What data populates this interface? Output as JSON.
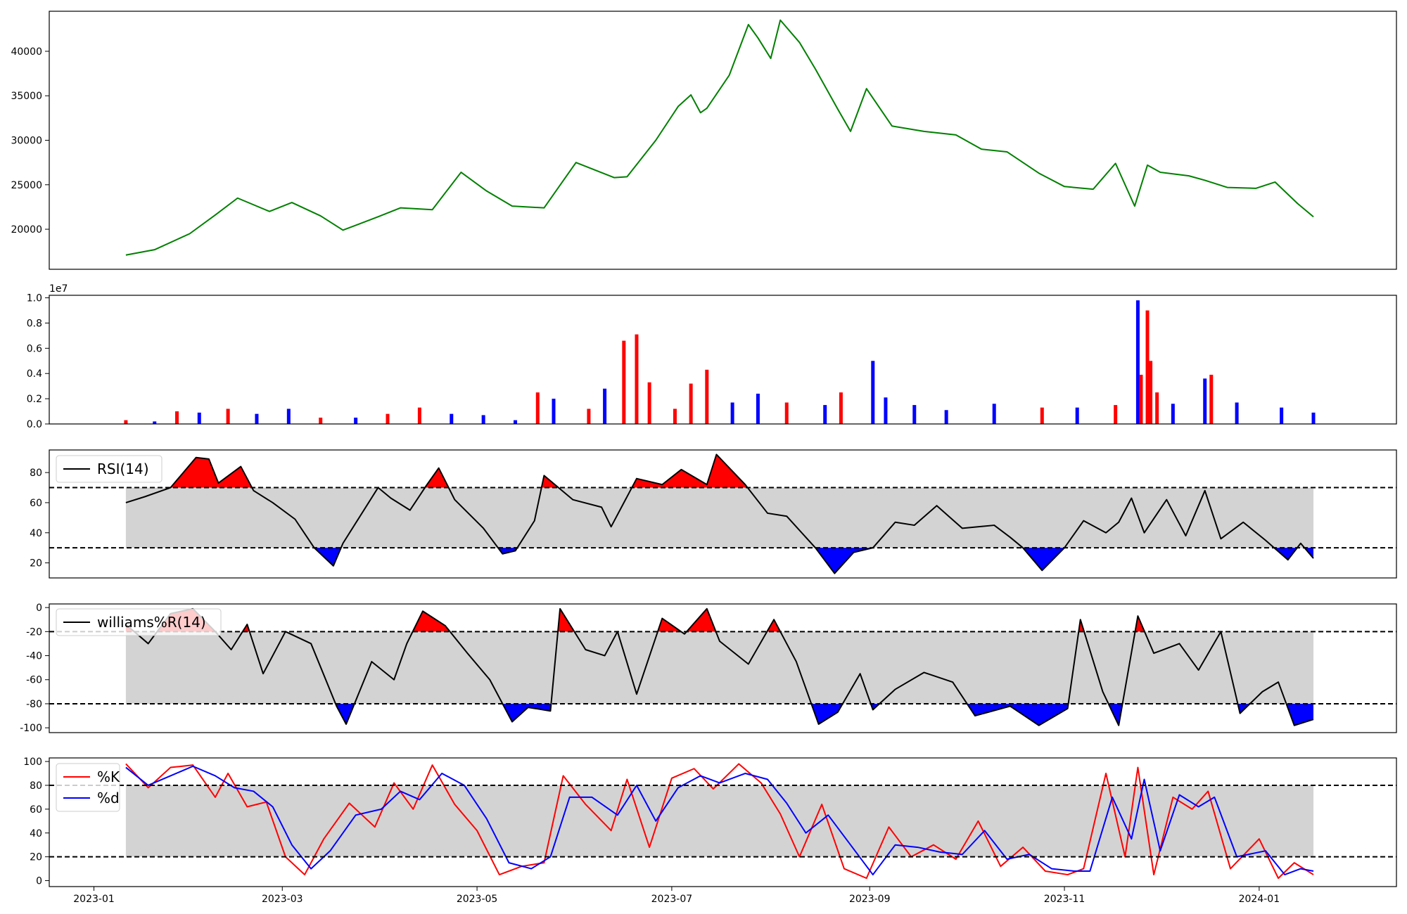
{
  "chart_data": [
    {
      "type": "line",
      "series": [
        {
          "color": "#008000",
          "x": [
            "2023-01-11",
            "2023-01-20",
            "2023-01-31",
            "2023-02-08",
            "2023-02-15",
            "2023-02-25",
            "2023-03-04",
            "2023-03-13",
            "2023-03-20",
            "2023-03-31",
            "2023-04-07",
            "2023-04-17",
            "2023-04-26",
            "2023-05-04",
            "2023-05-12",
            "2023-05-22",
            "2023-06-01",
            "2023-06-13",
            "2023-06-17",
            "2023-06-26",
            "2023-07-03",
            "2023-07-07",
            "2023-07-10",
            "2023-07-12",
            "2023-07-19",
            "2023-07-25",
            "2023-07-28",
            "2023-08-01",
            "2023-08-04",
            "2023-08-10",
            "2023-08-15",
            "2023-08-22",
            "2023-08-26",
            "2023-08-31",
            "2023-09-08",
            "2023-09-18",
            "2023-09-28",
            "2023-10-06",
            "2023-10-14",
            "2023-10-24",
            "2023-11-01",
            "2023-11-10",
            "2023-11-17",
            "2023-11-23",
            "2023-11-27",
            "2023-12-01",
            "2023-12-10",
            "2023-12-15",
            "2023-12-22",
            "2023-12-31",
            "2024-01-06",
            "2024-01-13",
            "2024-01-18"
          ],
          "values": [
            17100,
            17700,
            19500,
            21600,
            23500,
            22000,
            23000,
            21500,
            19900,
            21400,
            22400,
            22200,
            26400,
            24300,
            22600,
            22400,
            27500,
            25800,
            25900,
            30000,
            33800,
            35100,
            33100,
            33600,
            37300,
            43000,
            41500,
            39200,
            43500,
            41000,
            38000,
            33500,
            31000,
            35800,
            31600,
            31000,
            30600,
            29000,
            28700,
            26300,
            24800,
            24500,
            27400,
            22600,
            27200,
            26400,
            26000,
            25500,
            24700,
            24600,
            25300,
            22900,
            21400
          ]
        }
      ],
      "ylim": [
        15500,
        44500
      ],
      "yticks": [
        20000,
        25000,
        30000,
        35000,
        40000
      ]
    },
    {
      "type": "bar",
      "ylabel_multiplier": "1e7",
      "ylim": [
        0,
        1.02
      ],
      "yticks": [
        "0.0",
        "0.2",
        "0.4",
        "0.6",
        "0.8",
        "1.0"
      ],
      "up_color": "#ff0000",
      "down_color": "#0000ff",
      "bars": [
        {
          "date": "2023-01-11",
          "value": 0.03,
          "color": "red"
        },
        {
          "date": "2023-01-20",
          "value": 0.02,
          "color": "blue"
        },
        {
          "date": "2023-01-27",
          "value": 0.1,
          "color": "red"
        },
        {
          "date": "2023-02-03",
          "value": 0.09,
          "color": "blue"
        },
        {
          "date": "2023-02-12",
          "value": 0.12,
          "color": "red"
        },
        {
          "date": "2023-02-21",
          "value": 0.08,
          "color": "blue"
        },
        {
          "date": "2023-03-03",
          "value": 0.12,
          "color": "blue"
        },
        {
          "date": "2023-03-13",
          "value": 0.05,
          "color": "red"
        },
        {
          "date": "2023-03-24",
          "value": 0.05,
          "color": "blue"
        },
        {
          "date": "2023-04-03",
          "value": 0.08,
          "color": "red"
        },
        {
          "date": "2023-04-13",
          "value": 0.13,
          "color": "red"
        },
        {
          "date": "2023-04-23",
          "value": 0.08,
          "color": "blue"
        },
        {
          "date": "2023-05-03",
          "value": 0.07,
          "color": "blue"
        },
        {
          "date": "2023-05-13",
          "value": 0.03,
          "color": "blue"
        },
        {
          "date": "2023-05-20",
          "value": 0.25,
          "color": "red"
        },
        {
          "date": "2023-05-25",
          "value": 0.2,
          "color": "blue"
        },
        {
          "date": "2023-06-05",
          "value": 0.12,
          "color": "red"
        },
        {
          "date": "2023-06-10",
          "value": 0.28,
          "color": "blue"
        },
        {
          "date": "2023-06-16",
          "value": 0.66,
          "color": "red"
        },
        {
          "date": "2023-06-20",
          "value": 0.71,
          "color": "red"
        },
        {
          "date": "2023-06-24",
          "value": 0.33,
          "color": "red"
        },
        {
          "date": "2023-07-02",
          "value": 0.12,
          "color": "red"
        },
        {
          "date": "2023-07-07",
          "value": 0.32,
          "color": "red"
        },
        {
          "date": "2023-07-12",
          "value": 0.43,
          "color": "red"
        },
        {
          "date": "2023-07-20",
          "value": 0.17,
          "color": "blue"
        },
        {
          "date": "2023-07-28",
          "value": 0.24,
          "color": "blue"
        },
        {
          "date": "2023-08-06",
          "value": 0.17,
          "color": "red"
        },
        {
          "date": "2023-08-18",
          "value": 0.15,
          "color": "blue"
        },
        {
          "date": "2023-08-23",
          "value": 0.25,
          "color": "red"
        },
        {
          "date": "2023-09-02",
          "value": 0.5,
          "color": "blue"
        },
        {
          "date": "2023-09-06",
          "value": 0.21,
          "color": "blue"
        },
        {
          "date": "2023-09-15",
          "value": 0.15,
          "color": "blue"
        },
        {
          "date": "2023-09-25",
          "value": 0.11,
          "color": "blue"
        },
        {
          "date": "2023-10-10",
          "value": 0.16,
          "color": "blue"
        },
        {
          "date": "2023-10-25",
          "value": 0.13,
          "color": "red"
        },
        {
          "date": "2023-11-05",
          "value": 0.13,
          "color": "blue"
        },
        {
          "date": "2023-11-17",
          "value": 0.15,
          "color": "red"
        },
        {
          "date": "2023-11-24",
          "value": 0.98,
          "color": "blue"
        },
        {
          "date": "2023-11-25",
          "value": 0.39,
          "color": "red"
        },
        {
          "date": "2023-11-27",
          "value": 0.9,
          "color": "red"
        },
        {
          "date": "2023-11-28",
          "value": 0.5,
          "color": "red"
        },
        {
          "date": "2023-11-30",
          "value": 0.25,
          "color": "red"
        },
        {
          "date": "2023-12-05",
          "value": 0.16,
          "color": "blue"
        },
        {
          "date": "2023-12-15",
          "value": 0.36,
          "color": "blue"
        },
        {
          "date": "2023-12-17",
          "value": 0.39,
          "color": "red"
        },
        {
          "date": "2023-12-25",
          "value": 0.17,
          "color": "blue"
        },
        {
          "date": "2024-01-08",
          "value": 0.13,
          "color": "blue"
        },
        {
          "date": "2024-01-18",
          "value": 0.09,
          "color": "blue"
        }
      ]
    },
    {
      "type": "line",
      "legend": "RSI(14)",
      "ylim": [
        10,
        95
      ],
      "yticks": [
        20,
        40,
        60,
        80
      ],
      "upper": 70,
      "lower": 30,
      "fill_band_color": "#d3d3d3",
      "overbought_color": "#ff0000",
      "oversold_color": "#0000ff",
      "series": [
        {
          "color": "#000000",
          "x": [
            "2023-01-11",
            "2023-01-17",
            "2023-01-25",
            "2023-02-02",
            "2023-02-06",
            "2023-02-09",
            "2023-02-16",
            "2023-02-20",
            "2023-02-26",
            "2023-03-05",
            "2023-03-11",
            "2023-03-17",
            "2023-03-20",
            "2023-03-31",
            "2023-04-04",
            "2023-04-10",
            "2023-04-15",
            "2023-04-19",
            "2023-04-24",
            "2023-05-03",
            "2023-05-09",
            "2023-05-13",
            "2023-05-19",
            "2023-05-22",
            "2023-05-31",
            "2023-06-09",
            "2023-06-12",
            "2023-06-20",
            "2023-06-28",
            "2023-07-04",
            "2023-07-12",
            "2023-07-15",
            "2023-07-24",
            "2023-07-31",
            "2023-08-06",
            "2023-08-15",
            "2023-08-21",
            "2023-08-27",
            "2023-09-02",
            "2023-09-09",
            "2023-09-15",
            "2023-09-22",
            "2023-09-30",
            "2023-10-10",
            "2023-10-15",
            "2023-10-19",
            "2023-10-25",
            "2023-11-01",
            "2023-11-07",
            "2023-11-14",
            "2023-11-18",
            "2023-11-22",
            "2023-11-26",
            "2023-12-03",
            "2023-12-09",
            "2023-12-15",
            "2023-12-20",
            "2023-12-27",
            "2024-01-03",
            "2024-01-10",
            "2024-01-14",
            "2024-01-18"
          ],
          "values": [
            60,
            64,
            70,
            90,
            89,
            73,
            84,
            68,
            60,
            49,
            30,
            18,
            33,
            70,
            63,
            55,
            71,
            83,
            62,
            43,
            26,
            28,
            48,
            78,
            62,
            57,
            44,
            76,
            72,
            82,
            72,
            92,
            72,
            53,
            51,
            30,
            13,
            27,
            30,
            47,
            45,
            58,
            43,
            45,
            37,
            30,
            15,
            30,
            48,
            40,
            47,
            63,
            40,
            62,
            38,
            68,
            36,
            47,
            35,
            22,
            33,
            23
          ]
        }
      ]
    },
    {
      "type": "line",
      "legend": "williams%R(14)",
      "ylim": [
        -104,
        3
      ],
      "yticks": [
        0,
        -20,
        -40,
        -60,
        -80,
        -100
      ],
      "upper": -20,
      "lower": -80,
      "fill_band_color": "#d3d3d3",
      "overbought_color": "#ff0000",
      "oversold_color": "#0000ff",
      "series": [
        {
          "color": "#000000",
          "x": [
            "2023-01-11",
            "2023-01-18",
            "2023-01-25",
            "2023-02-01",
            "2023-02-08",
            "2023-02-13",
            "2023-02-18",
            "2023-02-23",
            "2023-03-02",
            "2023-03-10",
            "2023-03-18",
            "2023-03-21",
            "2023-03-29",
            "2023-04-05",
            "2023-04-09",
            "2023-04-14",
            "2023-04-21",
            "2023-04-28",
            "2023-05-05",
            "2023-05-12",
            "2023-05-17",
            "2023-05-24",
            "2023-05-27",
            "2023-06-04",
            "2023-06-10",
            "2023-06-14",
            "2023-06-20",
            "2023-06-28",
            "2023-07-05",
            "2023-07-12",
            "2023-07-16",
            "2023-07-25",
            "2023-08-02",
            "2023-08-09",
            "2023-08-16",
            "2023-08-22",
            "2023-08-29",
            "2023-09-02",
            "2023-09-09",
            "2023-09-18",
            "2023-09-27",
            "2023-10-04",
            "2023-10-15",
            "2023-10-24",
            "2023-11-02",
            "2023-11-06",
            "2023-11-13",
            "2023-11-18",
            "2023-11-24",
            "2023-11-29",
            "2023-12-07",
            "2023-12-13",
            "2023-12-20",
            "2023-12-26",
            "2024-01-02",
            "2024-01-07",
            "2024-01-12",
            "2024-01-18"
          ],
          "values": [
            -14,
            -30,
            -5,
            -1,
            -20,
            -35,
            -14,
            -55,
            -20,
            -30,
            -82,
            -97,
            -45,
            -60,
            -30,
            -3,
            -15,
            -38,
            -60,
            -95,
            -83,
            -86,
            -1,
            -35,
            -40,
            -20,
            -72,
            -9,
            -22,
            -1,
            -28,
            -47,
            -10,
            -45,
            -97,
            -87,
            -55,
            -85,
            -68,
            -54,
            -62,
            -90,
            -82,
            -98,
            -84,
            -10,
            -70,
            -98,
            -7,
            -38,
            -30,
            -52,
            -20,
            -88,
            -70,
            -62,
            -98,
            -93
          ]
        }
      ]
    },
    {
      "type": "line",
      "legend_entries": [
        "%K",
        "%d"
      ],
      "ylim": [
        -5,
        103
      ],
      "yticks": [
        0,
        20,
        40,
        60,
        80,
        100
      ],
      "upper": 80,
      "lower": 20,
      "fill_band_color": "#d3d3d3",
      "x_tick_labels": [
        "2023-01",
        "2023-03",
        "2023-05",
        "2023-07",
        "2023-09",
        "2023-11",
        "2024-01"
      ],
      "series": [
        {
          "name": "%K",
          "color": "#ff0000",
          "x": [
            "2023-01-11",
            "2023-01-18",
            "2023-01-25",
            "2023-02-01",
            "2023-02-08",
            "2023-02-12",
            "2023-02-18",
            "2023-02-24",
            "2023-03-02",
            "2023-03-08",
            "2023-03-14",
            "2023-03-22",
            "2023-03-30",
            "2023-04-05",
            "2023-04-11",
            "2023-04-17",
            "2023-04-24",
            "2023-05-01",
            "2023-05-08",
            "2023-05-15",
            "2023-05-22",
            "2023-05-28",
            "2023-06-04",
            "2023-06-12",
            "2023-06-17",
            "2023-06-24",
            "2023-07-01",
            "2023-07-08",
            "2023-07-14",
            "2023-07-22",
            "2023-07-29",
            "2023-08-04",
            "2023-08-10",
            "2023-08-17",
            "2023-08-24",
            "2023-08-31",
            "2023-09-07",
            "2023-09-14",
            "2023-09-21",
            "2023-09-28",
            "2023-10-05",
            "2023-10-12",
            "2023-10-19",
            "2023-10-26",
            "2023-11-02",
            "2023-11-07",
            "2023-11-14",
            "2023-11-20",
            "2023-11-24",
            "2023-11-29",
            "2023-12-05",
            "2023-12-11",
            "2023-12-16",
            "2023-12-23",
            "2024-01-01",
            "2024-01-07",
            "2024-01-12",
            "2024-01-18"
          ],
          "values": [
            98,
            78,
            95,
            97,
            70,
            90,
            62,
            66,
            20,
            5,
            35,
            65,
            45,
            82,
            60,
            97,
            64,
            42,
            5,
            12,
            15,
            88,
            64,
            42,
            85,
            28,
            86,
            94,
            77,
            98,
            82,
            56,
            20,
            64,
            10,
            2,
            45,
            20,
            30,
            18,
            50,
            12,
            28,
            8,
            5,
            10,
            90,
            20,
            95,
            5,
            70,
            60,
            75,
            10,
            35,
            2,
            15,
            5
          ]
        },
        {
          "name": "%d",
          "color": "#0000ff",
          "x": [
            "2023-01-11",
            "2023-01-18",
            "2023-01-25",
            "2023-02-01",
            "2023-02-08",
            "2023-02-14",
            "2023-02-20",
            "2023-02-26",
            "2023-03-04",
            "2023-03-10",
            "2023-03-16",
            "2023-03-24",
            "2023-04-01",
            "2023-04-07",
            "2023-04-13",
            "2023-04-20",
            "2023-04-27",
            "2023-05-04",
            "2023-05-11",
            "2023-05-18",
            "2023-05-24",
            "2023-05-30",
            "2023-06-06",
            "2023-06-14",
            "2023-06-20",
            "2023-06-26",
            "2023-07-03",
            "2023-07-10",
            "2023-07-16",
            "2023-07-24",
            "2023-07-31",
            "2023-08-06",
            "2023-08-12",
            "2023-08-19",
            "2023-08-26",
            "2023-09-02",
            "2023-09-09",
            "2023-09-16",
            "2023-09-23",
            "2023-09-30",
            "2023-10-07",
            "2023-10-14",
            "2023-10-21",
            "2023-10-28",
            "2023-11-04",
            "2023-11-09",
            "2023-11-16",
            "2023-11-22",
            "2023-11-26",
            "2023-12-01",
            "2023-12-07",
            "2023-12-13",
            "2023-12-18",
            "2023-12-25",
            "2024-01-03",
            "2024-01-09",
            "2024-01-14",
            "2024-01-18"
          ],
          "values": [
            95,
            80,
            88,
            96,
            88,
            78,
            75,
            62,
            30,
            10,
            25,
            55,
            60,
            75,
            68,
            90,
            80,
            52,
            15,
            10,
            20,
            70,
            70,
            55,
            80,
            50,
            78,
            88,
            82,
            90,
            85,
            65,
            40,
            55,
            30,
            5,
            30,
            28,
            24,
            22,
            42,
            18,
            22,
            10,
            8,
            8,
            70,
            35,
            85,
            25,
            72,
            62,
            70,
            20,
            25,
            5,
            10,
            8
          ]
        }
      ]
    }
  ]
}
